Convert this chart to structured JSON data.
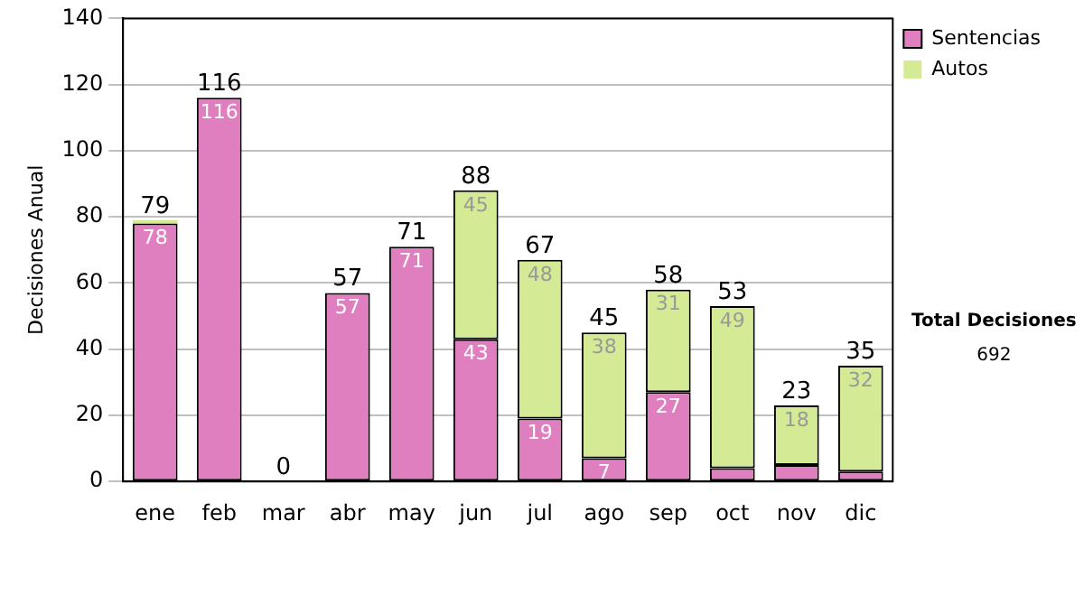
{
  "chart_data": {
    "type": "bar",
    "stacked": true,
    "ylabel": "Decisiones Anual",
    "categories": [
      "ene",
      "feb",
      "mar",
      "abr",
      "may",
      "jun",
      "jul",
      "ago",
      "sep",
      "oct",
      "nov",
      "dic"
    ],
    "series": [
      {
        "name": "Sentencias",
        "color": "#e07fc0",
        "values": [
          78,
          116,
          0,
          57,
          71,
          43,
          19,
          7,
          27,
          4,
          5,
          3
        ],
        "value_labels": [
          "78",
          "116",
          null,
          "57",
          "71",
          "43",
          "19",
          "7",
          "27",
          null,
          null,
          null
        ]
      },
      {
        "name": "Autos",
        "color": "#d4ea94",
        "values": [
          1,
          0,
          0,
          0,
          0,
          45,
          48,
          38,
          31,
          49,
          18,
          32
        ],
        "value_labels": [
          null,
          null,
          null,
          null,
          null,
          "45",
          "48",
          "38",
          "31",
          "49",
          "18",
          "32"
        ]
      }
    ],
    "totals": [
      "79",
      "116",
      "0",
      "57",
      "71",
      "88",
      "67",
      "45",
      "58",
      "53",
      "23",
      "35"
    ],
    "ylim": [
      0,
      140
    ],
    "yticks": [
      0,
      20,
      40,
      60,
      80,
      100,
      120,
      140
    ],
    "grid": "y",
    "legend": "right",
    "annotations": [
      "Total Decisiones",
      "692"
    ]
  }
}
